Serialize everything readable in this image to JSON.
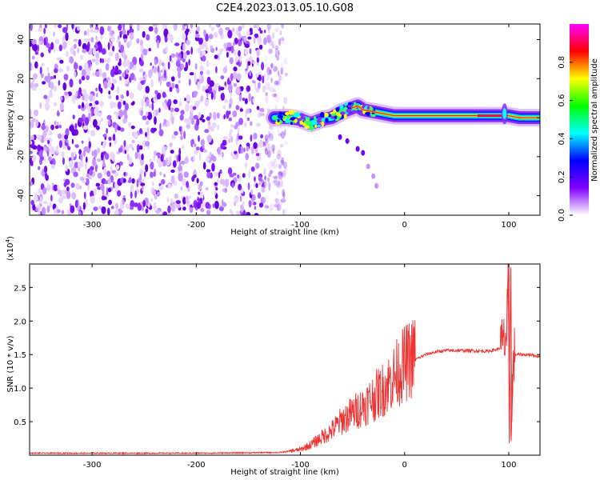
{
  "title": "C2E4.2023.013.05.10.G08",
  "chart_data": [
    {
      "type": "heatmap",
      "xlabel": "Height of straight line (km)",
      "ylabel": "Frequency (Hz)",
      "xlim": [
        -360,
        130
      ],
      "ylim": [
        -50,
        48
      ],
      "xticks": [
        -300,
        -200,
        -100,
        0,
        100
      ],
      "yticks": [
        -40,
        -20,
        0,
        20,
        40
      ],
      "noise_region_x": [
        -360,
        -118
      ],
      "signal_trace": {
        "x": [
          -125,
          -110,
          -100,
          -90,
          -80,
          -70,
          -60,
          -50,
          -45,
          -40,
          -30,
          -20,
          -10,
          0,
          20,
          50,
          80,
          95,
          100,
          110,
          130
        ],
        "freq": [
          0,
          0,
          -1,
          -3,
          -1,
          0,
          3,
          5,
          6,
          4,
          3,
          2,
          1,
          1,
          1,
          1,
          1,
          1,
          1,
          0,
          0
        ]
      },
      "secondary_trace": {
        "x": [
          -62,
          -55,
          -45,
          -40,
          -35,
          -30,
          -27
        ],
        "freq": [
          -10,
          -12,
          -16,
          -18,
          -25,
          -30,
          -35
        ]
      },
      "colorbar": {
        "label": "Normalized spectral amplitude",
        "range": [
          0,
          1
        ],
        "ticks": [
          "0.0",
          "0.2",
          "0.4",
          "0.6",
          "0.8"
        ],
        "colors": [
          "#ffffff",
          "#8000ff",
          "#0000ff",
          "#00ffff",
          "#00ff00",
          "#ffff00",
          "#ff0000",
          "#ff00ff"
        ]
      }
    },
    {
      "type": "line",
      "xlabel": "Height of straight line (km)",
      "ylabel": "SNR (10 * v/v)",
      "y_multiplier": "(x10",
      "y_multiplier_exp": "4",
      "xlim": [
        -360,
        130
      ],
      "ylim": [
        0,
        2.85
      ],
      "xticks": [
        -300,
        -200,
        -100,
        0,
        100
      ],
      "yticks": [
        "0.5",
        "1.0",
        "1.5",
        "2.0",
        "2.5"
      ],
      "color": "#ee3333",
      "x": [
        -360,
        -300,
        -200,
        -120,
        -100,
        -90,
        -80,
        -70,
        -60,
        -50,
        -40,
        -30,
        -20,
        -10,
        -5,
        0,
        10,
        20,
        30,
        40,
        60,
        80,
        90,
        95,
        98,
        100,
        102,
        105,
        110,
        120,
        130
      ],
      "values": [
        0.03,
        0.03,
        0.03,
        0.04,
        0.08,
        0.15,
        0.25,
        0.35,
        0.5,
        0.6,
        0.7,
        0.82,
        0.95,
        1.12,
        1.22,
        1.3,
        1.42,
        1.5,
        1.54,
        1.56,
        1.56,
        1.55,
        1.58,
        1.65,
        1.8,
        2.8,
        0.5,
        1.5,
        1.5,
        1.5,
        1.47
      ]
    }
  ]
}
